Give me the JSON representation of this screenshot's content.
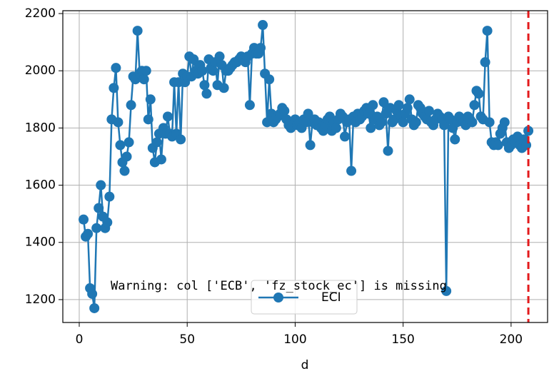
{
  "chart_data": {
    "type": "line",
    "xlabel": "d",
    "x": [
      2,
      3,
      4,
      5,
      6,
      7,
      8,
      9,
      10,
      11,
      12,
      13,
      14,
      15,
      16,
      17,
      18,
      19,
      20,
      21,
      22,
      23,
      24,
      25,
      26,
      27,
      28,
      29,
      30,
      31,
      32,
      33,
      34,
      35,
      36,
      37,
      38,
      39,
      40,
      41,
      42,
      43,
      44,
      45,
      46,
      47,
      48,
      49,
      50,
      51,
      52,
      53,
      54,
      55,
      56,
      57,
      58,
      59,
      60,
      61,
      62,
      63,
      64,
      65,
      66,
      67,
      68,
      69,
      70,
      71,
      72,
      73,
      74,
      75,
      76,
      77,
      78,
      79,
      80,
      81,
      82,
      83,
      84,
      85,
      86,
      87,
      88,
      89,
      90,
      91,
      92,
      93,
      94,
      95,
      96,
      97,
      98,
      99,
      100,
      101,
      102,
      103,
      104,
      105,
      106,
      107,
      108,
      109,
      110,
      111,
      112,
      113,
      114,
      115,
      116,
      117,
      118,
      119,
      120,
      121,
      122,
      123,
      124,
      125,
      126,
      127,
      128,
      129,
      130,
      131,
      132,
      133,
      134,
      135,
      136,
      137,
      138,
      139,
      140,
      141,
      142,
      143,
      144,
      145,
      146,
      147,
      148,
      149,
      150,
      151,
      152,
      153,
      154,
      155,
      156,
      157,
      158,
      159,
      160,
      161,
      162,
      163,
      164,
      165,
      166,
      167,
      168,
      169,
      170,
      171,
      172,
      173,
      174,
      175,
      176,
      177,
      178,
      179,
      180,
      181,
      182,
      183,
      184,
      185,
      186,
      187,
      188,
      189,
      190,
      191,
      192,
      193,
      194,
      195,
      196,
      197,
      198,
      199,
      200,
      201,
      202,
      203,
      204,
      205,
      206,
      207,
      208
    ],
    "series": [
      {
        "name": "ECI",
        "color": "#1f77b4",
        "values": [
          1480,
          1420,
          1430,
          1240,
          1220,
          1170,
          1450,
          1520,
          1600,
          1490,
          1450,
          1470,
          1560,
          1830,
          1940,
          2010,
          1820,
          1740,
          1680,
          1650,
          1700,
          1750,
          1880,
          1980,
          1970,
          2140,
          1990,
          2000,
          1970,
          2000,
          1830,
          1900,
          1730,
          1680,
          1750,
          1780,
          1690,
          1800,
          1780,
          1840,
          1780,
          1770,
          1960,
          1780,
          1960,
          1760,
          1990,
          1960,
          1980,
          2050,
          1980,
          2040,
          2000,
          1990,
          2020,
          2000,
          1950,
          1920,
          2040,
          2010,
          2000,
          2030,
          1950,
          2050,
          2020,
          1940,
          2000,
          2000,
          2010,
          2020,
          2030,
          2030,
          2040,
          2050,
          2040,
          2030,
          2050,
          1880,
          2060,
          2080,
          2060,
          2060,
          2080,
          2160,
          1990,
          1820,
          1970,
          1850,
          1820,
          1830,
          1840,
          1850,
          1870,
          1860,
          1830,
          1810,
          1800,
          1820,
          1830,
          1810,
          1820,
          1800,
          1830,
          1820,
          1850,
          1740,
          1820,
          1830,
          1810,
          1820,
          1800,
          1790,
          1810,
          1830,
          1840,
          1790,
          1820,
          1800,
          1830,
          1850,
          1840,
          1770,
          1820,
          1830,
          1650,
          1840,
          1820,
          1850,
          1830,
          1840,
          1860,
          1870,
          1850,
          1800,
          1880,
          1830,
          1840,
          1810,
          1820,
          1890,
          1850,
          1720,
          1870,
          1820,
          1830,
          1860,
          1880,
          1840,
          1820,
          1850,
          1870,
          1900,
          1830,
          1810,
          1820,
          1880,
          1870,
          1850,
          1840,
          1830,
          1860,
          1820,
          1810,
          1830,
          1850,
          1840,
          1830,
          1810,
          1230,
          1840,
          1830,
          1800,
          1760,
          1820,
          1840,
          1830,
          1820,
          1810,
          1840,
          1830,
          1820,
          1880,
          1930,
          1920,
          1840,
          1830,
          2030,
          2140,
          1820,
          1750,
          1740,
          1750,
          1740,
          1780,
          1800,
          1820,
          1750,
          1730,
          1740,
          1760,
          1750,
          1770,
          1740,
          1730,
          1760,
          1740,
          1790
        ]
      }
    ],
    "xlim": [
      -7.6,
      216.9
    ],
    "ylim": [
      1120,
      2210
    ],
    "xticks": [
      0,
      50,
      100,
      150,
      200
    ],
    "yticks": [
      1200,
      1400,
      1600,
      1800,
      2000,
      2200
    ],
    "grid": true,
    "legend": "lower center",
    "vline": {
      "x": 208,
      "color": "#e31a1c"
    },
    "annotation": "Warning: col ['ECB', 'fz_stock_ec'] is missing"
  }
}
